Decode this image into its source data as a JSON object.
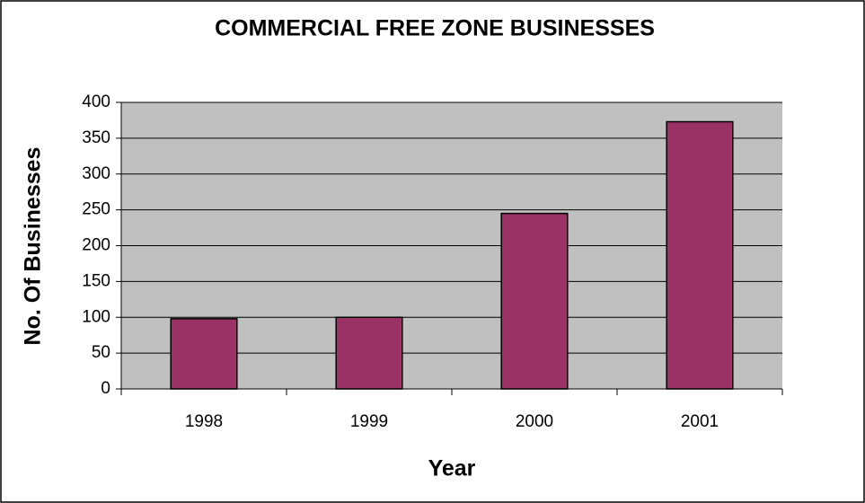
{
  "chart_data": {
    "type": "bar",
    "title": "COMMERCIAL FREE ZONE BUSINESSES",
    "x_label": "Year",
    "y_label": "No. Of Businesses",
    "categories": [
      "1998",
      "1999",
      "2000",
      "2001"
    ],
    "values": [
      98,
      100,
      245,
      373
    ],
    "color": "#993366",
    "ylim": [
      0,
      400
    ],
    "yticks": [
      0,
      50,
      100,
      150,
      200,
      250,
      300,
      350,
      400
    ],
    "grid": true
  }
}
